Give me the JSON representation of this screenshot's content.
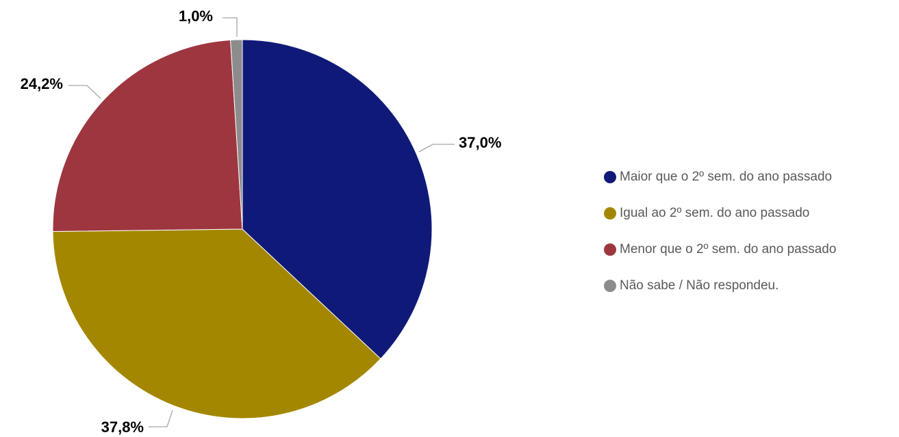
{
  "chart_data": {
    "type": "pie",
    "title": "",
    "legend_position": "right",
    "slices": [
      {
        "label": "Maior que o 2º sem. do ano passado",
        "value": 37.0,
        "display": "37,0%",
        "color": "#0f1a78"
      },
      {
        "label": "Igual ao 2º sem. do ano passado",
        "value": 37.8,
        "display": "37,8%",
        "color": "#a38700"
      },
      {
        "label": "Menor que o 2º sem. do ano passado",
        "value": 24.2,
        "display": "24,2%",
        "color": "#9e3640"
      },
      {
        "label": "Não sabe / Não respondeu.",
        "value": 1.0,
        "display": "1,0%",
        "color": "#8c8c8c"
      }
    ]
  }
}
